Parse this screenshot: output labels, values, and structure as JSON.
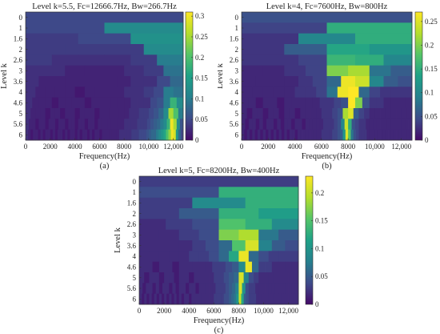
{
  "colormap": [
    "#440a68",
    "#3e4b8a",
    "#26808e",
    "#1fa187",
    "#54c568",
    "#b4de2c",
    "#fde725"
  ],
  "chart_data": [
    {
      "type": "heatmap",
      "caption": "(a)",
      "title": "Level  k=5.5,    Fc=12666.7Hz,    Bw=266.7Hz",
      "xlabel": "Frequency(Hz)",
      "ylabel": "Level k",
      "x_ticks": [
        "0",
        "2000",
        "4000",
        "6000",
        "8000",
        "10,000",
        "12,000"
      ],
      "x_tick_values": [
        0,
        2000,
        4000,
        6000,
        8000,
        10000,
        12000
      ],
      "xlim": [
        0,
        12800
      ],
      "y_ticks": [
        "0",
        "1",
        "1.6",
        "2",
        "2.6",
        "3",
        "3.6",
        "4",
        "4.6",
        "5",
        "5.6",
        "6"
      ],
      "colorbar_ticks": [
        "0",
        "0.05",
        "0.1",
        "0.15",
        "0.2",
        "0.25",
        "0.3"
      ],
      "clim": [
        0,
        0.31
      ],
      "rows": [
        {
          "nseg": 1,
          "values": [
            0.05
          ]
        },
        {
          "nseg": 2,
          "values": [
            0.05,
            0.12
          ]
        },
        {
          "nseg": 3,
          "values": [
            0.04,
            0.05,
            0.13
          ]
        },
        {
          "nseg": 4,
          "values": [
            0.04,
            0.04,
            0.04,
            0.12
          ]
        },
        {
          "nseg": 6,
          "values": [
            0.04,
            0.03,
            0.03,
            0.03,
            0.04,
            0.1
          ]
        },
        {
          "nseg": 8,
          "values": [
            0.03,
            0.03,
            0.02,
            0.02,
            0.02,
            0.03,
            0.04,
            0.09
          ]
        },
        {
          "nseg": 12,
          "values": [
            0.03,
            0.02,
            0.02,
            0.02,
            0.02,
            0.02,
            0.02,
            0.02,
            0.03,
            0.03,
            0.05,
            0.08
          ]
        },
        {
          "nseg": 16,
          "values": [
            0.03,
            0.02,
            0.02,
            0.02,
            0.02,
            0.01,
            0.02,
            0.02,
            0.02,
            0.02,
            0.03,
            0.03,
            0.04,
            0.05,
            0.1,
            0.09
          ]
        },
        {
          "nseg": 24,
          "values": [
            0.03,
            0.02,
            0.02,
            0.02,
            0.01,
            0.02,
            0.02,
            0.02,
            0.02,
            0.01,
            0.02,
            0.02,
            0.02,
            0.02,
            0.02,
            0.02,
            0.03,
            0.03,
            0.03,
            0.05,
            0.06,
            0.1,
            0.18,
            0.12
          ]
        },
        {
          "nseg": 32,
          "values": [
            0.03,
            0.02,
            0.02,
            0.02,
            0.01,
            0.02,
            0.02,
            0.01,
            0.02,
            0.02,
            0.01,
            0.02,
            0.02,
            0.02,
            0.01,
            0.02,
            0.02,
            0.02,
            0.02,
            0.02,
            0.02,
            0.03,
            0.03,
            0.04,
            0.04,
            0.05,
            0.06,
            0.08,
            0.12,
            0.25,
            0.2,
            0.1
          ]
        },
        {
          "nseg": 48,
          "values": [
            0.03,
            0.02,
            0.02,
            0.01,
            0.02,
            0.02,
            0.01,
            0.02,
            0.02,
            0.01,
            0.02,
            0.02,
            0.01,
            0.02,
            0.02,
            0.01,
            0.02,
            0.02,
            0.01,
            0.02,
            0.02,
            0.01,
            0.02,
            0.02,
            0.02,
            0.02,
            0.02,
            0.02,
            0.02,
            0.02,
            0.03,
            0.03,
            0.03,
            0.03,
            0.04,
            0.04,
            0.04,
            0.05,
            0.06,
            0.07,
            0.08,
            0.1,
            0.12,
            0.18,
            0.3,
            0.25,
            0.12,
            0.06
          ]
        },
        {
          "nseg": 64,
          "values": [
            0.03,
            0.02,
            0.01,
            0.02,
            0.02,
            0.01,
            0.02,
            0.01,
            0.02,
            0.02,
            0.01,
            0.02,
            0.01,
            0.02,
            0.02,
            0.01,
            0.02,
            0.01,
            0.02,
            0.02,
            0.01,
            0.02,
            0.01,
            0.02,
            0.02,
            0.01,
            0.02,
            0.01,
            0.02,
            0.02,
            0.01,
            0.02,
            0.02,
            0.02,
            0.02,
            0.02,
            0.02,
            0.02,
            0.03,
            0.03,
            0.03,
            0.03,
            0.03,
            0.04,
            0.04,
            0.04,
            0.05,
            0.05,
            0.05,
            0.06,
            0.07,
            0.08,
            0.08,
            0.1,
            0.12,
            0.14,
            0.16,
            0.2,
            0.24,
            0.3,
            0.28,
            0.14,
            0.08,
            0.05
          ]
        }
      ]
    },
    {
      "type": "heatmap",
      "caption": "(b)",
      "title": "Level  k=4,    Fc=7600Hz,    Bw=800Hz",
      "xlabel": "Frequency(Hz)",
      "ylabel": "Level k",
      "x_ticks": [
        "0",
        "2000",
        "4000",
        "6000",
        "8000",
        "10,000",
        "12,000"
      ],
      "x_tick_values": [
        0,
        2000,
        4000,
        6000,
        8000,
        10000,
        12000
      ],
      "xlim": [
        0,
        12800
      ],
      "y_ticks": [
        "0",
        "1",
        "1.6",
        "2",
        "2.6",
        "3",
        "3.6",
        "4",
        "4.6",
        "5",
        "5.6",
        "6"
      ],
      "colorbar_ticks": [
        "0",
        "0.05",
        "0.1",
        "0.15",
        "0.2",
        "0.25"
      ],
      "clim": [
        0,
        0.27
      ],
      "rows": [
        {
          "nseg": 1,
          "values": [
            0.05
          ]
        },
        {
          "nseg": 2,
          "values": [
            0.04,
            0.15
          ]
        },
        {
          "nseg": 3,
          "values": [
            0.03,
            0.1,
            0.15
          ]
        },
        {
          "nseg": 4,
          "values": [
            0.03,
            0.06,
            0.14,
            0.12
          ]
        },
        {
          "nseg": 6,
          "values": [
            0.03,
            0.03,
            0.04,
            0.16,
            0.15,
            0.1
          ]
        },
        {
          "nseg": 8,
          "values": [
            0.02,
            0.02,
            0.03,
            0.04,
            0.2,
            0.22,
            0.08,
            0.06
          ]
        },
        {
          "nseg": 12,
          "values": [
            0.02,
            0.02,
            0.02,
            0.02,
            0.03,
            0.04,
            0.07,
            0.26,
            0.24,
            0.1,
            0.06,
            0.05
          ]
        },
        {
          "nseg": 16,
          "values": [
            0.02,
            0.02,
            0.02,
            0.02,
            0.02,
            0.03,
            0.03,
            0.04,
            0.08,
            0.26,
            0.27,
            0.07,
            0.04,
            0.03,
            0.03,
            0.03
          ]
        },
        {
          "nseg": 24,
          "values": [
            0.02,
            0.02,
            0.01,
            0.02,
            0.02,
            0.01,
            0.02,
            0.02,
            0.02,
            0.02,
            0.02,
            0.03,
            0.03,
            0.04,
            0.05,
            0.27,
            0.2,
            0.05,
            0.03,
            0.03,
            0.02,
            0.02,
            0.02,
            0.02
          ]
        },
        {
          "nseg": 32,
          "values": [
            0.02,
            0.01,
            0.02,
            0.02,
            0.01,
            0.02,
            0.02,
            0.01,
            0.02,
            0.02,
            0.01,
            0.02,
            0.02,
            0.02,
            0.02,
            0.03,
            0.03,
            0.04,
            0.05,
            0.22,
            0.25,
            0.06,
            0.04,
            0.03,
            0.02,
            0.02,
            0.02,
            0.02,
            0.02,
            0.02,
            0.02,
            0.02
          ]
        },
        {
          "nseg": 48,
          "values": [
            0.02,
            0.01,
            0.02,
            0.02,
            0.01,
            0.02,
            0.01,
            0.02,
            0.02,
            0.01,
            0.02,
            0.01,
            0.02,
            0.02,
            0.01,
            0.02,
            0.02,
            0.01,
            0.02,
            0.02,
            0.02,
            0.02,
            0.02,
            0.03,
            0.03,
            0.03,
            0.04,
            0.05,
            0.1,
            0.24,
            0.15,
            0.05,
            0.04,
            0.03,
            0.03,
            0.02,
            0.02,
            0.02,
            0.02,
            0.02,
            0.02,
            0.02,
            0.02,
            0.02,
            0.02,
            0.02,
            0.02,
            0.02
          ]
        },
        {
          "nseg": 64,
          "values": [
            0.02,
            0.01,
            0.02,
            0.01,
            0.02,
            0.01,
            0.02,
            0.01,
            0.02,
            0.01,
            0.02,
            0.01,
            0.02,
            0.01,
            0.02,
            0.01,
            0.02,
            0.01,
            0.02,
            0.02,
            0.01,
            0.02,
            0.02,
            0.02,
            0.02,
            0.02,
            0.02,
            0.02,
            0.02,
            0.02,
            0.03,
            0.03,
            0.03,
            0.03,
            0.04,
            0.04,
            0.05,
            0.06,
            0.12,
            0.25,
            0.18,
            0.08,
            0.05,
            0.04,
            0.03,
            0.03,
            0.03,
            0.02,
            0.02,
            0.02,
            0.02,
            0.02,
            0.02,
            0.02,
            0.02,
            0.02,
            0.02,
            0.02,
            0.02,
            0.02,
            0.02,
            0.02,
            0.02,
            0.02
          ]
        }
      ]
    },
    {
      "type": "heatmap",
      "caption": "(c)",
      "title": "Level  k=5,    Fc=8200Hz,    Bw=400Hz",
      "xlabel": "Frequency(Hz)",
      "ylabel": "Level k",
      "x_ticks": [
        "0",
        "2000",
        "4000",
        "6000",
        "8000",
        "10,000",
        "12,000"
      ],
      "x_tick_values": [
        0,
        2000,
        4000,
        6000,
        8000,
        10000,
        12000
      ],
      "xlim": [
        0,
        12800
      ],
      "y_ticks": [
        "0",
        "1",
        "1.6",
        "2",
        "2.6",
        "3",
        "3.6",
        "4",
        "4.6",
        "5",
        "5.6",
        "6"
      ],
      "colorbar_ticks": [
        "0",
        "0.05",
        "0.1",
        "0.15",
        "0.2"
      ],
      "clim": [
        0,
        0.23
      ],
      "rows": [
        {
          "nseg": 1,
          "values": [
            0.03
          ]
        },
        {
          "nseg": 2,
          "values": [
            0.04,
            0.13
          ]
        },
        {
          "nseg": 3,
          "values": [
            0.03,
            0.09,
            0.13
          ]
        },
        {
          "nseg": 4,
          "values": [
            0.03,
            0.05,
            0.13,
            0.11
          ]
        },
        {
          "nseg": 6,
          "values": [
            0.02,
            0.03,
            0.04,
            0.15,
            0.13,
            0.09
          ]
        },
        {
          "nseg": 8,
          "values": [
            0.02,
            0.02,
            0.03,
            0.04,
            0.17,
            0.19,
            0.07,
            0.05
          ]
        },
        {
          "nseg": 12,
          "values": [
            0.02,
            0.02,
            0.02,
            0.02,
            0.03,
            0.04,
            0.06,
            0.15,
            0.21,
            0.08,
            0.05,
            0.04
          ]
        },
        {
          "nseg": 16,
          "values": [
            0.02,
            0.02,
            0.02,
            0.02,
            0.02,
            0.03,
            0.03,
            0.04,
            0.06,
            0.12,
            0.22,
            0.06,
            0.04,
            0.03,
            0.03,
            0.03
          ]
        },
        {
          "nseg": 24,
          "values": [
            0.02,
            0.02,
            0.01,
            0.02,
            0.02,
            0.01,
            0.02,
            0.02,
            0.02,
            0.02,
            0.02,
            0.03,
            0.03,
            0.04,
            0.05,
            0.09,
            0.22,
            0.06,
            0.03,
            0.03,
            0.02,
            0.02,
            0.02,
            0.02
          ]
        },
        {
          "nseg": 32,
          "values": [
            0.02,
            0.01,
            0.02,
            0.02,
            0.01,
            0.02,
            0.02,
            0.01,
            0.02,
            0.02,
            0.01,
            0.02,
            0.02,
            0.02,
            0.02,
            0.03,
            0.03,
            0.04,
            0.05,
            0.06,
            0.21,
            0.08,
            0.04,
            0.03,
            0.02,
            0.02,
            0.02,
            0.02,
            0.02,
            0.02,
            0.02,
            0.02
          ]
        },
        {
          "nseg": 48,
          "values": [
            0.02,
            0.01,
            0.02,
            0.02,
            0.01,
            0.02,
            0.01,
            0.02,
            0.02,
            0.01,
            0.02,
            0.01,
            0.02,
            0.02,
            0.01,
            0.02,
            0.02,
            0.01,
            0.02,
            0.02,
            0.02,
            0.02,
            0.02,
            0.03,
            0.03,
            0.03,
            0.04,
            0.05,
            0.06,
            0.08,
            0.21,
            0.1,
            0.04,
            0.03,
            0.03,
            0.02,
            0.02,
            0.02,
            0.02,
            0.02,
            0.02,
            0.02,
            0.02,
            0.02,
            0.02,
            0.02,
            0.02,
            0.02
          ]
        },
        {
          "nseg": 64,
          "values": [
            0.02,
            0.01,
            0.02,
            0.01,
            0.02,
            0.01,
            0.02,
            0.01,
            0.02,
            0.01,
            0.02,
            0.01,
            0.02,
            0.01,
            0.02,
            0.01,
            0.02,
            0.01,
            0.02,
            0.02,
            0.01,
            0.02,
            0.02,
            0.02,
            0.02,
            0.02,
            0.02,
            0.02,
            0.02,
            0.02,
            0.03,
            0.03,
            0.03,
            0.03,
            0.04,
            0.04,
            0.05,
            0.06,
            0.07,
            0.1,
            0.2,
            0.12,
            0.05,
            0.04,
            0.03,
            0.03,
            0.03,
            0.02,
            0.02,
            0.02,
            0.02,
            0.02,
            0.02,
            0.02,
            0.02,
            0.02,
            0.02,
            0.02,
            0.02,
            0.02,
            0.02,
            0.02,
            0.02,
            0.02
          ]
        }
      ]
    }
  ]
}
